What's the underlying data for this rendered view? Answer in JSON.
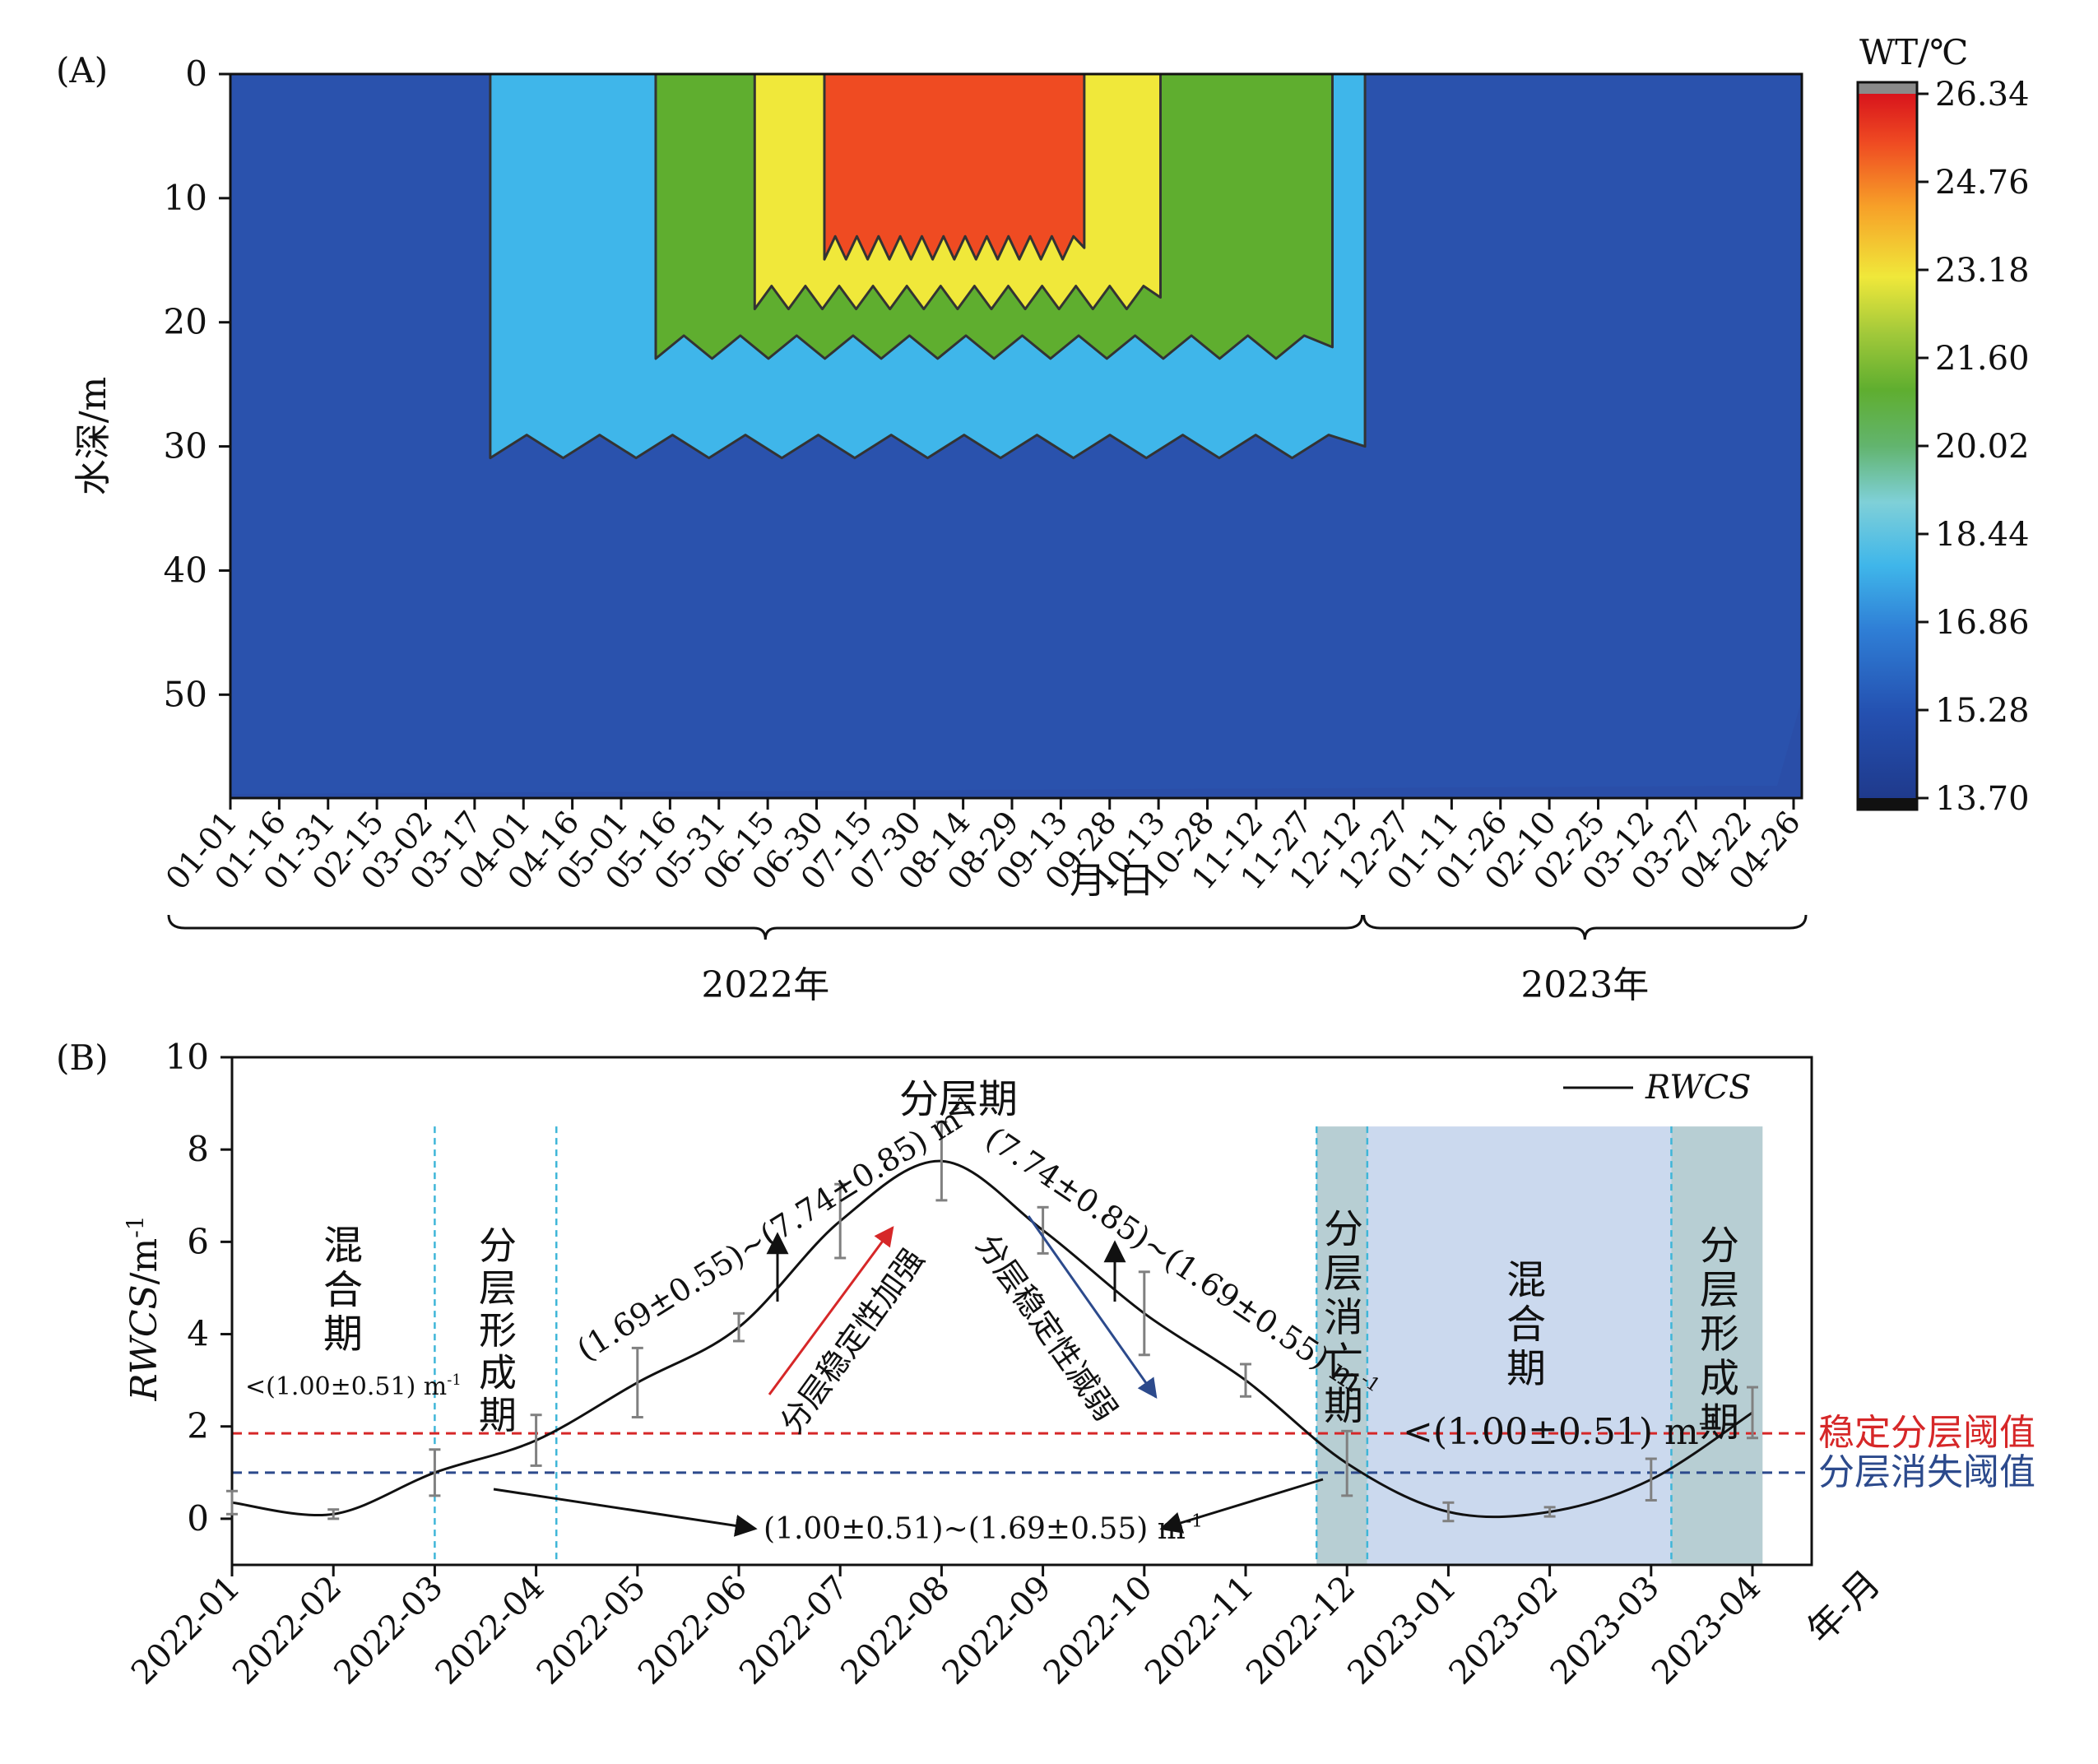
{
  "chart_data": [
    {
      "panel_label": "(A)",
      "type": "heatmap",
      "ylabel": "水深/m",
      "xlabel": "月-日",
      "ylim": [
        0,
        58
      ],
      "y_ticks": [
        0,
        10,
        20,
        30,
        40,
        50
      ],
      "x_ticks": [
        "01-01",
        "01-16",
        "01-31",
        "02-15",
        "03-02",
        "03-17",
        "04-01",
        "04-16",
        "05-01",
        "05-16",
        "05-31",
        "06-15",
        "06-30",
        "07-15",
        "07-30",
        "08-14",
        "08-29",
        "09-13",
        "09-28",
        "10-13",
        "10-28",
        "11-12",
        "11-27",
        "12-12",
        "12-27",
        "01-11",
        "01-26",
        "02-10",
        "02-25",
        "03-12",
        "03-27",
        "04-22",
        "04-26"
      ],
      "year_groups": [
        {
          "label": "2022年",
          "from_tick": 0,
          "to_tick": 23
        },
        {
          "label": "2023年",
          "from_tick": 23,
          "to_tick": 32
        }
      ],
      "colorbar": {
        "title": "WT/℃",
        "min": 13.7,
        "max": 26.34,
        "ticks": [
          "26.34",
          "24.76",
          "23.18",
          "21.60",
          "20.02",
          "18.44",
          "16.86",
          "15.28",
          "13.70"
        ]
      },
      "layers": [
        {
          "name": "warm_top",
          "temp": 24.8,
          "start": "07-01",
          "end": "09-20",
          "max_depth": 14
        },
        {
          "name": "upper",
          "temp": 22.5,
          "start": "06-10",
          "end": "10-13",
          "max_depth": 18
        },
        {
          "name": "thermocline_upper",
          "temp": 20.5,
          "start": "05-10",
          "end": "12-05",
          "max_depth": 22
        },
        {
          "name": "thermocline_lower",
          "temp": 16.8,
          "start": "03-20",
          "end": "12-15",
          "max_depth": 30
        }
      ]
    },
    {
      "panel_label": "(B)",
      "type": "line",
      "ylabel": "RWCS/m-1",
      "xlabel": "年-月",
      "ylim": [
        -1,
        10
      ],
      "y_ticks": [
        0,
        2,
        4,
        6,
        8,
        10
      ],
      "categories": [
        "2022-01",
        "2022-02",
        "2022-03",
        "2022-04",
        "2022-05",
        "2022-06",
        "2022-07",
        "2022-08",
        "2022-09",
        "2022-10",
        "2022-11",
        "2022-12",
        "2023-01",
        "2023-02",
        "2023-03",
        "2023-04"
      ],
      "series": [
        {
          "name": "RWCS",
          "values": [
            0.35,
            0.1,
            1.0,
            1.7,
            2.95,
            4.15,
            6.45,
            7.75,
            6.25,
            4.45,
            3.0,
            1.2,
            0.15,
            0.15,
            0.85,
            2.3
          ],
          "errors": [
            0.25,
            0.1,
            0.5,
            0.55,
            0.75,
            0.3,
            0.8,
            0.85,
            0.5,
            0.9,
            0.35,
            0.7,
            0.2,
            0.1,
            0.45,
            0.55
          ]
        }
      ],
      "thresholds": [
        {
          "label": "稳定分层阈值",
          "value": 1.85,
          "color": "#d62728"
        },
        {
          "label": "分层消失阈值",
          "value": 1.0,
          "color": "#2c4a8c"
        }
      ],
      "legend": {
        "entry": "RWCS",
        "position": "top-right"
      },
      "period_lines": [
        "2022-03",
        "2022-04.2",
        "2022-11.7",
        "2022-12.2",
        "2023-03.2"
      ],
      "shaded_periods": [
        {
          "from": 10.7,
          "to": 11.2,
          "color": "#b7ced3"
        },
        {
          "from": 11.2,
          "to": 14.2,
          "color": "#cbd9ee"
        },
        {
          "from": 14.2,
          "to": 15.1,
          "color": "#b7ced3"
        }
      ],
      "annotations": {
        "mix1": "混\n合\n期",
        "mix1_range": "<(1.00±0.51) m",
        "form1": "分\n层\n形\n成\n期",
        "strat": "分层期",
        "rise_range": "(1.69±0.55)~(7.74±0.85) m",
        "fall_range": "(7.74±0.85)~(1.69±0.55) m",
        "rise_arrow": "分层稳定性加强",
        "fall_arrow": "分层稳定性减弱",
        "transition_range": "(1.00±0.51)~(1.69±0.55) m",
        "vanish": "分\n层\n消\n亡\n期",
        "mix2": "混\n合\n期",
        "mix2_range": "<(1.00±0.51) m",
        "form2": "分\n层\n形\n成\n期",
        "unit_sup": "-1"
      }
    }
  ]
}
